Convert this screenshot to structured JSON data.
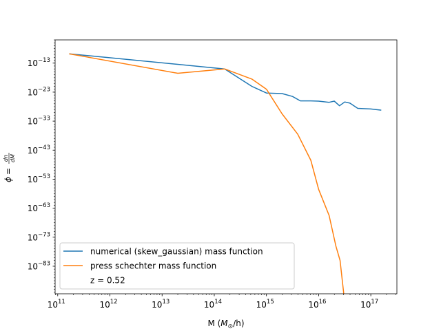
{
  "chart_data": {
    "type": "line",
    "title": "",
    "xlabel": "M (M☉/h)",
    "xlabel_parts": {
      "pre": "M (",
      "sym": "M",
      "sub": "⊙",
      "post": "/h)"
    },
    "ylabel": "φ = dn/dM",
    "ylabel_parts": {
      "phi": "ϕ",
      "eq": "=",
      "num": "dn",
      "den": "dM"
    },
    "x_scale": "log",
    "y_scale": "log",
    "xlim_exp": [
      10.95,
      17.5
    ],
    "ylim_exp": [
      -92.5,
      -5.0
    ],
    "grid": false,
    "legend_position": "lower-left",
    "x_ticks": [
      {
        "exp": 11,
        "label": "11"
      },
      {
        "exp": 12,
        "label": "12"
      },
      {
        "exp": 13,
        "label": "13"
      },
      {
        "exp": 14,
        "label": "14"
      },
      {
        "exp": 15,
        "label": "15"
      },
      {
        "exp": 16,
        "label": "16"
      },
      {
        "exp": 17,
        "label": "17"
      }
    ],
    "y_ticks": [
      {
        "exp": -13,
        "label": "−13"
      },
      {
        "exp": -23,
        "label": "−23"
      },
      {
        "exp": -33,
        "label": "−33"
      },
      {
        "exp": -43,
        "label": "−43"
      },
      {
        "exp": -53,
        "label": "−53"
      },
      {
        "exp": -63,
        "label": "−63"
      },
      {
        "exp": -73,
        "label": "−73"
      },
      {
        "exp": -83,
        "label": "−83"
      }
    ],
    "series": [
      {
        "name": "numerical (skew_gaussian) mass function",
        "color": "#1f77b4",
        "x_log10": [
          11.22,
          14.2,
          14.72,
          15.0,
          15.3,
          15.5,
          15.65,
          15.85,
          16.0,
          16.2,
          16.3,
          16.4,
          16.5,
          16.6,
          16.7,
          16.75,
          16.85,
          17.0,
          17.2
        ],
        "y_log10": [
          -9.8,
          -15.0,
          -21.0,
          -23.3,
          -23.5,
          -24.5,
          -26.0,
          -26.0,
          -26.1,
          -26.5,
          -26.1,
          -27.7,
          -26.4,
          -26.8,
          -28.0,
          -28.6,
          -28.7,
          -28.8,
          -29.2
        ]
      },
      {
        "name": "press schechter mass function",
        "color": "#ff7f0e",
        "x_log10": [
          11.22,
          13.3,
          14.2,
          14.72,
          15.0,
          15.3,
          15.6,
          15.85,
          16.0,
          16.2,
          16.33,
          16.41,
          16.51,
          16.58,
          16.68
        ],
        "y_log10": [
          -9.8,
          -16.5,
          -15.0,
          -18.5,
          -22.0,
          -30.5,
          -37.5,
          -46.5,
          -56.5,
          -65.5,
          -76.0,
          -81.0,
          -97.0,
          -104.5,
          -109.5
        ]
      }
    ],
    "annotation": "z = 0.52"
  }
}
